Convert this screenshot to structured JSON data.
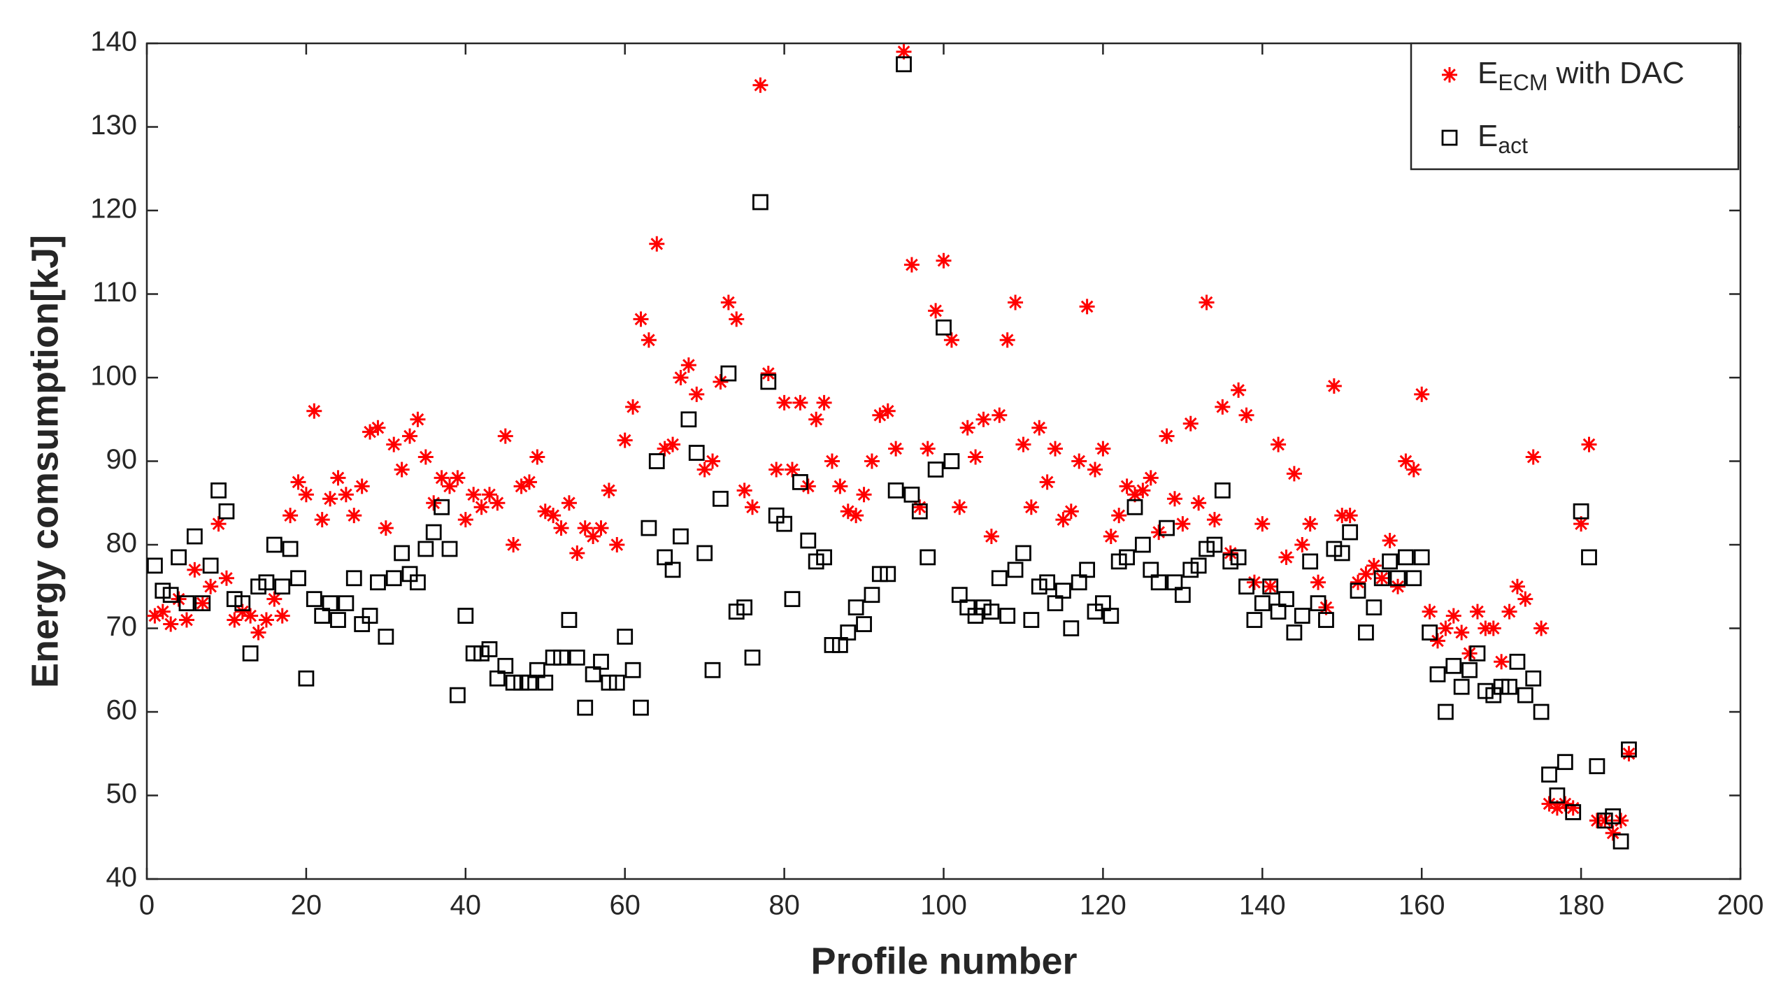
{
  "chart_data": {
    "type": "scatter",
    "xlabel": "Profile number",
    "ylabel": "Energy comsumption[kJ]",
    "xlim": [
      0,
      200
    ],
    "xticks": [
      0,
      20,
      40,
      60,
      80,
      100,
      120,
      140,
      160,
      180,
      200
    ],
    "ylim": [
      40,
      140
    ],
    "yticks": [
      40,
      50,
      60,
      70,
      80,
      90,
      100,
      110,
      120,
      130,
      140
    ],
    "grid": false,
    "legend": "upper right",
    "x": [
      1,
      2,
      3,
      4,
      5,
      6,
      7,
      8,
      9,
      10,
      11,
      12,
      13,
      14,
      15,
      16,
      17,
      18,
      19,
      20,
      21,
      22,
      23,
      24,
      25,
      26,
      27,
      28,
      29,
      30,
      31,
      32,
      33,
      34,
      35,
      36,
      37,
      38,
      39,
      40,
      41,
      42,
      43,
      44,
      45,
      46,
      47,
      48,
      49,
      50,
      51,
      52,
      53,
      54,
      55,
      56,
      57,
      58,
      59,
      60,
      61,
      62,
      63,
      64,
      65,
      66,
      67,
      68,
      69,
      70,
      71,
      72,
      73,
      74,
      75,
      76,
      77,
      78,
      79,
      80,
      81,
      82,
      83,
      84,
      85,
      86,
      87,
      88,
      89,
      90,
      91,
      92,
      93,
      94,
      95,
      96,
      97,
      98,
      99,
      100,
      101,
      102,
      103,
      104,
      105,
      106,
      107,
      108,
      109,
      110,
      111,
      112,
      113,
      114,
      115,
      116,
      117,
      118,
      119,
      120,
      121,
      122,
      123,
      124,
      125,
      126,
      127,
      128,
      129,
      130,
      131,
      132,
      133,
      134,
      135,
      136,
      137,
      138,
      139,
      140,
      141,
      142,
      143,
      144,
      145,
      146,
      147,
      148,
      149,
      150,
      151,
      152,
      153,
      154,
      155,
      156,
      157,
      158,
      159,
      160,
      161,
      162,
      163,
      164,
      165,
      166,
      167,
      168,
      169,
      170,
      171,
      172,
      173,
      174,
      175,
      176,
      177,
      178,
      179,
      180,
      181,
      182,
      183,
      184,
      185,
      186
    ],
    "series": [
      {
        "name": "E",
        "name_sub": "ECM",
        "name_tail": "with DAC",
        "color": "#ff0000",
        "marker": "asterisk",
        "values": [
          71.5,
          72,
          70.5,
          73.5,
          71,
          77,
          73,
          75,
          82.5,
          76,
          71,
          72,
          71.5,
          69.5,
          71,
          73.5,
          71.5,
          83.5,
          87.5,
          86,
          96,
          83,
          85.5,
          88,
          86,
          83.5,
          87,
          93.5,
          94,
          82,
          92,
          89,
          93,
          95,
          90.5,
          85,
          88,
          87,
          88,
          83,
          86,
          84.5,
          86,
          85,
          93,
          80,
          87,
          87.5,
          90.5,
          84,
          83.5,
          82,
          85,
          79,
          82,
          81,
          82,
          86.5,
          80,
          92.5,
          96.5,
          107,
          104.5,
          116,
          91.5,
          92,
          100,
          101.5,
          98,
          89,
          90,
          99.5,
          109,
          107,
          86.5,
          84.5,
          135,
          100.5,
          89,
          97,
          89,
          97,
          87,
          95,
          97,
          90,
          87,
          84,
          83.5,
          86,
          90,
          95.5,
          96,
          91.5,
          139,
          113.5,
          84.5,
          91.5,
          108,
          114,
          104.5,
          84.5,
          94,
          90.5,
          95,
          81,
          95.5,
          104.5,
          109,
          92,
          84.5,
          94,
          87.5,
          91.5,
          83,
          84,
          90,
          108.5,
          89,
          91.5,
          81,
          83.5,
          87,
          86,
          86.5,
          88,
          81.5,
          93,
          85.5,
          82.5,
          94.5,
          85,
          109,
          83,
          96.5,
          79,
          98.5,
          95.5,
          75.5,
          82.5,
          75,
          92,
          78.5,
          88.5,
          80,
          82.5,
          75.5,
          72.5,
          99,
          83.5,
          83.5,
          75.5,
          76.5,
          77.5,
          76,
          80.5,
          75,
          90,
          89,
          98,
          72,
          68.5,
          70,
          71.5,
          69.5,
          67,
          72,
          70,
          70,
          66,
          72,
          75,
          73.5,
          90.5,
          70,
          49,
          48.5,
          49,
          48.5,
          82.5,
          92,
          47,
          47,
          45.5,
          47,
          55
        ]
      },
      {
        "name": "E",
        "name_sub": "act",
        "color": "#000000",
        "marker": "square",
        "values": [
          77.5,
          74.5,
          74,
          78.5,
          73,
          81,
          73,
          77.5,
          86.5,
          84,
          73.5,
          73,
          67,
          75,
          75.5,
          80,
          75,
          79.5,
          76,
          64,
          73.5,
          71.5,
          73,
          71,
          73,
          76,
          70.5,
          71.5,
          75.5,
          69,
          76,
          79,
          76.5,
          75.5,
          79.5,
          81.5,
          84.5,
          79.5,
          62,
          71.5,
          67,
          67,
          67.5,
          64,
          65.5,
          63.5,
          63.5,
          63.5,
          65,
          63.5,
          66.5,
          66.5,
          71,
          66.5,
          60.5,
          64.5,
          66,
          63.5,
          63.5,
          69,
          65,
          60.5,
          82,
          90,
          78.5,
          77,
          81,
          95,
          91,
          79,
          65,
          85.5,
          100.5,
          72,
          72.5,
          66.5,
          121,
          99.5,
          83.5,
          82.5,
          73.5,
          87.5,
          80.5,
          78,
          78.5,
          68,
          68,
          69.5,
          72.5,
          70.5,
          74,
          76.5,
          76.5,
          86.5,
          137.5,
          86,
          84,
          78.5,
          89,
          106,
          90,
          74,
          72.5,
          71.5,
          72.5,
          72,
          76,
          71.5,
          77,
          79,
          71,
          75,
          75.5,
          73,
          74.5,
          70,
          75.5,
          77,
          72,
          73,
          71.5,
          78,
          78.5,
          84.5,
          80,
          77,
          75.5,
          82,
          75.5,
          74,
          77,
          77.5,
          79.5,
          80,
          86.5,
          78,
          78.5,
          75,
          71,
          73,
          75,
          72,
          73.5,
          69.5,
          71.5,
          78,
          73,
          71,
          79.5,
          79,
          81.5,
          74.5,
          69.5,
          72.5,
          76,
          78,
          76,
          78.5,
          76,
          78.5,
          69.5,
          64.5,
          60,
          65.5,
          63,
          65,
          67,
          62.5,
          62,
          63,
          63,
          66,
          62,
          64,
          60,
          52.5,
          50,
          54,
          48,
          84,
          78.5,
          53.5,
          47,
          47.5,
          44.5,
          55.5
        ]
      }
    ]
  }
}
